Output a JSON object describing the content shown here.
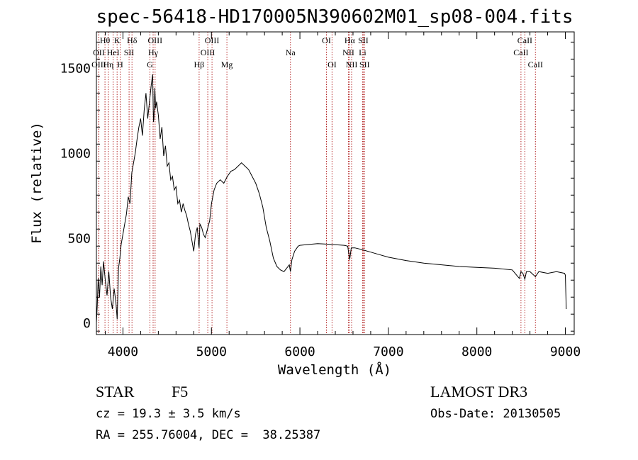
{
  "chart_data": {
    "type": "line",
    "title": "spec-56418-HD170005N390602M01_sp08-004.fits",
    "xlabel": "Wavelength (Å)",
    "ylabel": "Flux (relative)",
    "xlim": [
      3700,
      9100
    ],
    "ylim": [
      -70,
      1710
    ],
    "x_ticks": [
      4000,
      5000,
      6000,
      7000,
      8000,
      9000
    ],
    "x_tick_labels": [
      "4000",
      "5000",
      "6000",
      "7000",
      "8000",
      "9000"
    ],
    "y_ticks": [
      0,
      500,
      1000,
      1500
    ],
    "y_tick_labels": [
      "0",
      "500",
      "1000",
      "1500"
    ],
    "series": [
      {
        "name": "spectrum",
        "x": [
          3700,
          3710,
          3720,
          3735,
          3750,
          3765,
          3780,
          3800,
          3820,
          3840,
          3860,
          3880,
          3900,
          3920,
          3935,
          3950,
          3965,
          3980,
          4000,
          4020,
          4040,
          4060,
          4080,
          4100,
          4120,
          4140,
          4160,
          4180,
          4200,
          4220,
          4240,
          4260,
          4280,
          4300,
          4320,
          4335,
          4345,
          4350,
          4360,
          4370,
          4380,
          4400,
          4420,
          4440,
          4460,
          4480,
          4500,
          4520,
          4540,
          4560,
          4580,
          4600,
          4620,
          4640,
          4660,
          4680,
          4700,
          4720,
          4740,
          4760,
          4780,
          4800,
          4820,
          4840,
          4855,
          4861,
          4870,
          4890,
          4910,
          4930,
          4950,
          4980,
          5000,
          5030,
          5060,
          5100,
          5140,
          5180,
          5220,
          5260,
          5300,
          5340,
          5380,
          5420,
          5460,
          5500,
          5540,
          5580,
          5620,
          5660,
          5700,
          5740,
          5780,
          5820,
          5850,
          5880,
          5893,
          5910,
          5940,
          5980,
          6000,
          6100,
          6200,
          6300,
          6400,
          6500,
          6540,
          6563,
          6580,
          6620,
          6700,
          6800,
          6900,
          7000,
          7200,
          7400,
          7600,
          7800,
          8000,
          8200,
          8400,
          8480,
          8498,
          8520,
          8542,
          8560,
          8600,
          8662,
          8700,
          8800,
          8900,
          8990,
          9000,
          9010
        ],
        "values": [
          0,
          100,
          260,
          150,
          330,
          220,
          360,
          250,
          160,
          300,
          150,
          80,
          200,
          120,
          20,
          320,
          380,
          460,
          520,
          580,
          640,
          740,
          700,
          880,
          940,
          1000,
          1080,
          1150,
          1200,
          1100,
          1250,
          1350,
          1200,
          1300,
          1400,
          1460,
          1180,
          1200,
          1380,
          1260,
          1300,
          1220,
          1080,
          1150,
          980,
          1040,
          920,
          940,
          840,
          860,
          780,
          800,
          700,
          720,
          650,
          700,
          660,
          630,
          580,
          540,
          480,
          420,
          520,
          560,
          460,
          440,
          580,
          560,
          520,
          500,
          540,
          600,
          700,
          780,
          820,
          840,
          820,
          860,
          890,
          900,
          920,
          940,
          920,
          900,
          860,
          820,
          760,
          680,
          560,
          480,
          380,
          330,
          310,
          300,
          320,
          340,
          300,
          370,
          420,
          450,
          455,
          460,
          465,
          462,
          458,
          455,
          450,
          370,
          440,
          440,
          430,
          415,
          400,
          385,
          365,
          350,
          340,
          330,
          325,
          320,
          310,
          260,
          300,
          290,
          255,
          300,
          300,
          270,
          300,
          290,
          300,
          290,
          280,
          80
        ]
      }
    ],
    "lines": [
      {
        "label": "Hθ",
        "wavelength": 3797,
        "row": 1
      },
      {
        "label": "OII",
        "wavelength": 3727,
        "row": 2
      },
      {
        "label": "OIII",
        "wavelength": 3727,
        "row": 3
      },
      {
        "label": "HeI",
        "wavelength": 3889,
        "row": 2
      },
      {
        "label": "Hη",
        "wavelength": 3835,
        "row": 3
      },
      {
        "label": "K",
        "wavelength": 3934,
        "row": 1
      },
      {
        "label": "SII",
        "wavelength": 4069,
        "row": 2
      },
      {
        "label": "H",
        "wavelength": 3968,
        "row": 3
      },
      {
        "label": "Hδ",
        "wavelength": 4102,
        "row": 1
      },
      {
        "label": "OIII",
        "wavelength": 4363,
        "row": 1
      },
      {
        "label": "Hγ",
        "wavelength": 4341,
        "row": 2
      },
      {
        "label": "G",
        "wavelength": 4305,
        "row": 3
      },
      {
        "label": "OIII",
        "wavelength": 5007,
        "row": 1
      },
      {
        "label": "OIII",
        "wavelength": 4959,
        "row": 2
      },
      {
        "label": "Hβ",
        "wavelength": 4861,
        "row": 3
      },
      {
        "label": "Mg",
        "wavelength": 5175,
        "row": 3
      },
      {
        "label": "Na",
        "wavelength": 5893,
        "row": 2
      },
      {
        "label": "OI",
        "wavelength": 6300,
        "row": 1
      },
      {
        "label": "OI",
        "wavelength": 6363,
        "row": 3
      },
      {
        "label": "Hα",
        "wavelength": 6563,
        "row": 1
      },
      {
        "label": "SII",
        "wavelength": 6716,
        "row": 1
      },
      {
        "label": "NII",
        "wavelength": 6548,
        "row": 2
      },
      {
        "label": "Li",
        "wavelength": 6708,
        "row": 2
      },
      {
        "label": "NII",
        "wavelength": 6584,
        "row": 3
      },
      {
        "label": "SII",
        "wavelength": 6731,
        "row": 3
      },
      {
        "label": "CaII",
        "wavelength": 8542,
        "row": 1
      },
      {
        "label": "CaII",
        "wavelength": 8498,
        "row": 2
      },
      {
        "label": "CaII",
        "wavelength": 8662,
        "row": 3
      }
    ]
  },
  "info": {
    "class_label": "STAR",
    "subclass": "F5",
    "survey": "LAMOST DR3",
    "redshift": "cz = 19.3 ± 3.5 km/s",
    "obs_date": "Obs-Date: 20130505",
    "coords": "RA = 255.76004, DEC =  38.25387"
  },
  "colors": {
    "line": "#000000",
    "marker": "#b22222",
    "axis": "#000000",
    "background": "#ffffff"
  }
}
